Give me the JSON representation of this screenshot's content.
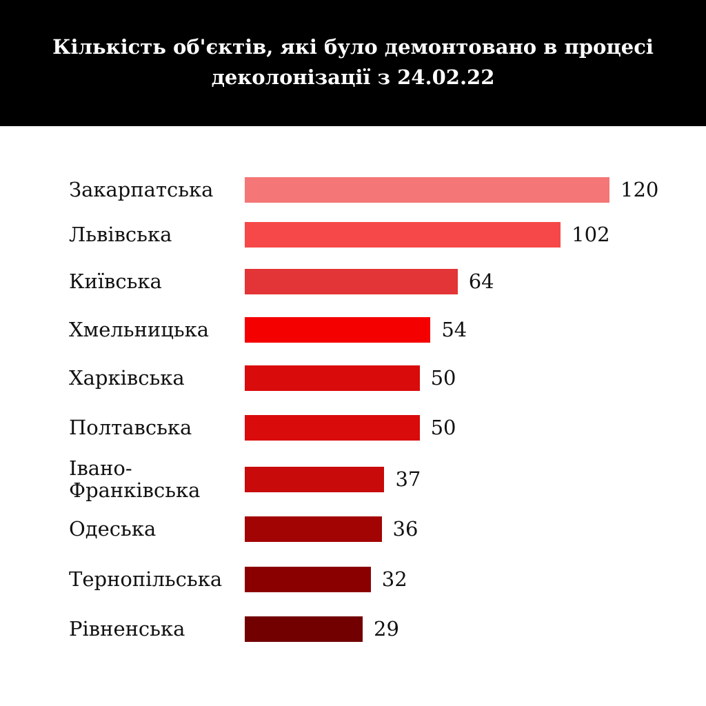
{
  "chart_data": {
    "type": "bar",
    "orientation": "horizontal",
    "title": "Кількість об'єктів, які було демонтовано в процесі деколонізації з 24.02.22",
    "categories": [
      "Закарпатська",
      "Львівська",
      "Київська",
      "Хмельницька",
      "Харківська",
      "Полтавська",
      "Івано-Франківська",
      "Одеська",
      "Тернопільська",
      "Рівненська"
    ],
    "values": [
      120,
      102,
      64,
      54,
      50,
      50,
      37,
      36,
      32,
      29
    ],
    "colors": [
      "#f47676",
      "#f64848",
      "#e33437",
      "#f40000",
      "#d90b0b",
      "#da0b0b",
      "#c80a0a",
      "#a20303",
      "#8a0000",
      "#720000"
    ],
    "xlabel": "",
    "ylabel": "",
    "grid": false,
    "legend": "none"
  }
}
